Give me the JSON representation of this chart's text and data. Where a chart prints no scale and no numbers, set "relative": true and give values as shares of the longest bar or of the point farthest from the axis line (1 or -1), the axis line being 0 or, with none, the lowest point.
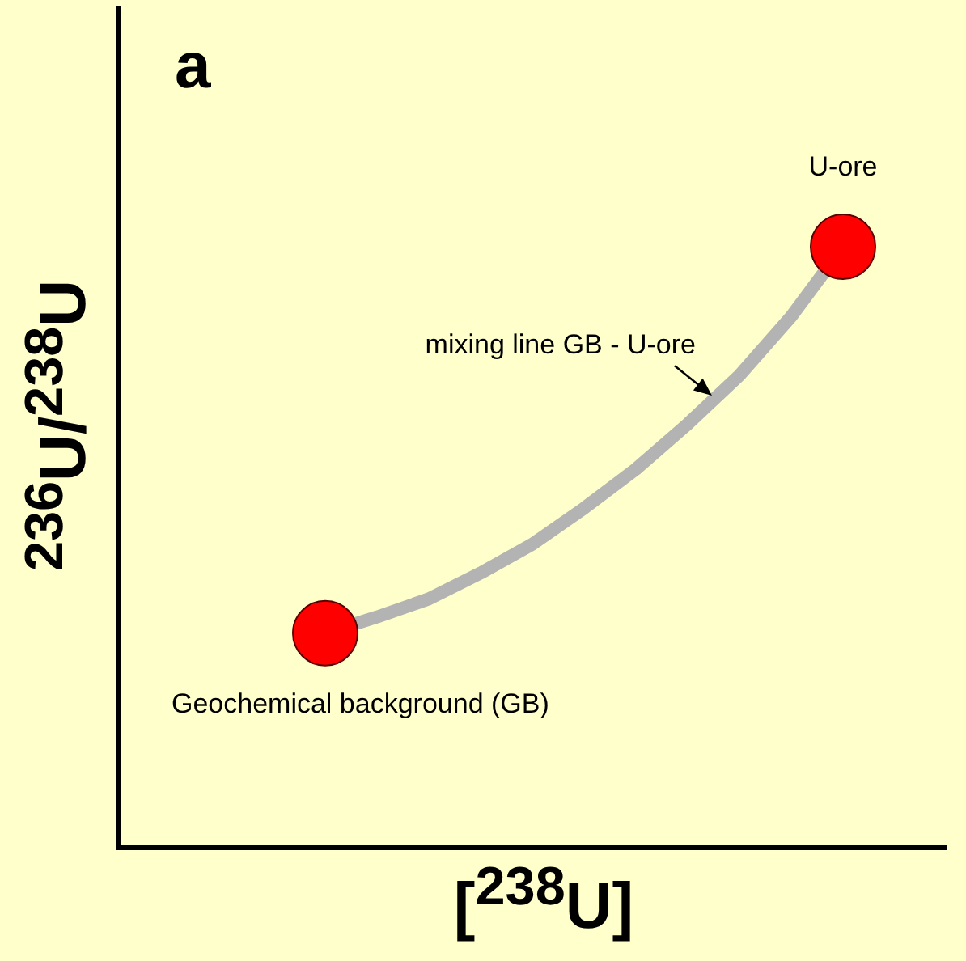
{
  "chart_data": {
    "type": "line",
    "relative": true,
    "xlabel": "[$^{238}$U]",
    "ylabel": "$^{236}$U/$^{238}$U",
    "grid": false,
    "legend": false,
    "categories": [
      null,
      null,
      null,
      null,
      null,
      null,
      null,
      null,
      null,
      null,
      null,
      null,
      null,
      null,
      null,
      null,
      null
    ],
    "series": [
      {
        "color": "#b3b3b3",
        "colors": [
          null,
          null,
          null,
          null,
          "#ff0000",
          null,
          null,
          null,
          null,
          null,
          null,
          null,
          null,
          null,
          "#ff0000",
          null,
          null
        ],
        "values": [
          null,
          null,
          null,
          null,
          0.357,
          0.384,
          0.414,
          0.457,
          0.505,
          0.565,
          0.63,
          0.705,
          0.786,
          0.884,
          1,
          null,
          null
        ]
      }
    ],
    "annotations": [
      "a",
      {
        "text": "U-ore",
        "y": 1
      },
      "mixing line GB - U-ore",
      {
        "text": "Geochemical background (GB)",
        "y": 0.357
      }
    ]
  }
}
